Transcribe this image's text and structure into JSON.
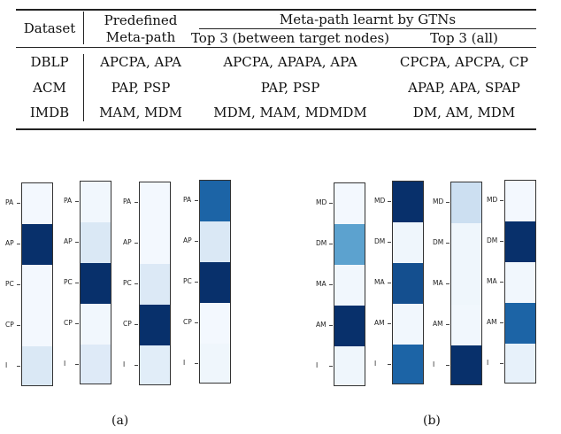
{
  "table": {
    "headers": {
      "dataset": "Dataset",
      "predefined_line1": "Predefined",
      "predefined_line2": "Meta-path",
      "learnt": "Meta-path learnt by GTNs",
      "top3_target": "Top 3 (between target nodes)",
      "top3_all": "Top 3 (all)"
    },
    "rows": [
      {
        "dataset": "DBLP",
        "predefined": "APCPA, APA",
        "top3_target": "APCPA, APAPA, APA",
        "top3_all": "CPCPA, APCPA, CP"
      },
      {
        "dataset": "ACM",
        "predefined": "PAP, PSP",
        "top3_target": "PAP, PSP",
        "top3_all": "APAP, APA, SPAP"
      },
      {
        "dataset": "IMDB",
        "predefined": "MAM, MDM",
        "top3_target": "MDM, MAM, MDMDM",
        "top3_all": "DM, AM, MDM"
      }
    ]
  },
  "chart_data": [
    {
      "type": "heatmap",
      "caption": "(a)",
      "rows": [
        "PA",
        "AP",
        "PC",
        "CP",
        "I"
      ],
      "columns": [
        [
          0.02,
          1.0,
          0.02,
          0.02,
          0.15
        ],
        [
          0.03,
          0.15,
          1.0,
          0.03,
          0.13
        ],
        [
          0.02,
          0.02,
          0.14,
          1.0,
          0.11
        ],
        [
          0.8,
          0.15,
          1.0,
          0.02,
          0.04
        ]
      ],
      "colormap": [
        "#f7fbff",
        "#08306b"
      ]
    },
    {
      "type": "heatmap",
      "caption": "(b)",
      "rows": [
        "MD",
        "DM",
        "MA",
        "AM",
        "I"
      ],
      "columns": [
        [
          0.02,
          0.55,
          0.03,
          1.0,
          0.04
        ],
        [
          1.0,
          0.04,
          0.88,
          0.03,
          0.8
        ],
        [
          0.22,
          0.04,
          0.04,
          0.03,
          1.0
        ],
        [
          0.02,
          1.0,
          0.03,
          0.8,
          0.08
        ]
      ],
      "colormap": [
        "#f7fbff",
        "#08306b"
      ]
    }
  ]
}
